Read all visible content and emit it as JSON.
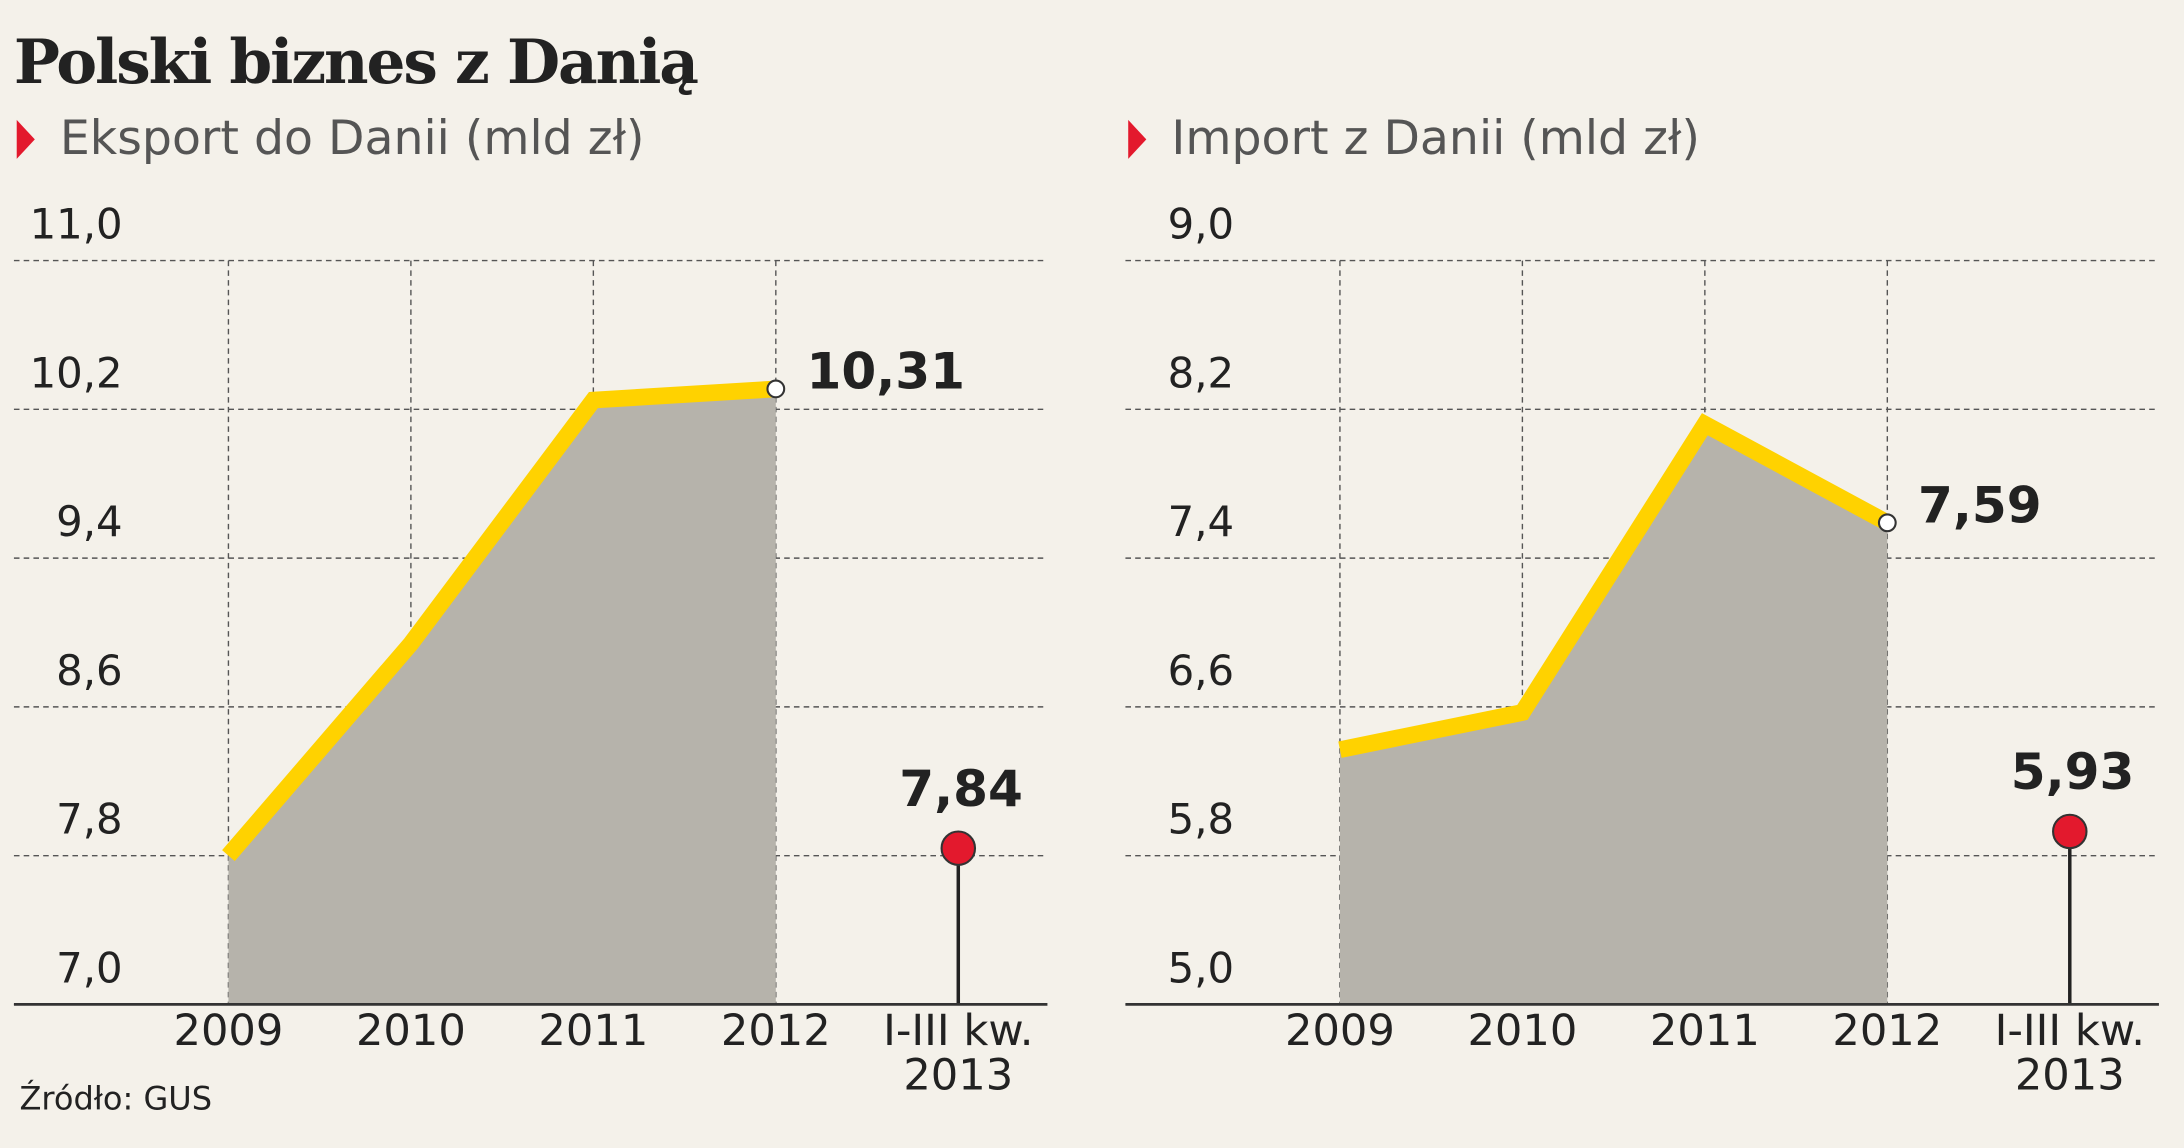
{
  "title": "Polski biznes z Danią",
  "source": "Źródło: GUS",
  "chart_data": [
    {
      "type": "line",
      "title": "Eksport do Danii (mld zł)",
      "categories": [
        "2009",
        "2010",
        "2011",
        "2012",
        "I-III kw. 2013"
      ],
      "ylim": [
        7,
        11
      ],
      "yticks": [
        {
          "value": 7,
          "label": "7,0"
        },
        {
          "value": 7.8,
          "label": "7,8"
        },
        {
          "value": 8.6,
          "label": "8,6"
        },
        {
          "value": 9.4,
          "label": "9,4"
        },
        {
          "value": 10.2,
          "label": "10,2"
        },
        {
          "value": 11,
          "label": "11,0"
        }
      ],
      "grid": true,
      "series": [
        {
          "type": "area",
          "color": "#ffd200",
          "fill": "#b6b3ab",
          "values": [
            7.8,
            8.94,
            10.25,
            10.31,
            null
          ],
          "value_labels": [
            null,
            null,
            null,
            "10,31",
            null
          ]
        },
        {
          "type": "lollipop",
          "color": "#e3192d",
          "values": [
            null,
            null,
            null,
            null,
            7.84
          ],
          "value_labels": [
            null,
            null,
            null,
            null,
            "7,84"
          ]
        }
      ]
    },
    {
      "type": "line",
      "title": "Import z Danii (mld zł)",
      "categories": [
        "2009",
        "2010",
        "2011",
        "2012",
        "I-III kw. 2013"
      ],
      "ylim": [
        5,
        9
      ],
      "yticks": [
        {
          "value": 5,
          "label": "5,0"
        },
        {
          "value": 5.8,
          "label": "5,8"
        },
        {
          "value": 6.6,
          "label": "6,6"
        },
        {
          "value": 7.4,
          "label": "7,4"
        },
        {
          "value": 8.2,
          "label": "8,2"
        },
        {
          "value": 9,
          "label": "9,0"
        }
      ],
      "grid": true,
      "series": [
        {
          "type": "area",
          "color": "#ffd200",
          "fill": "#b6b3ab",
          "values": [
            6.37,
            6.57,
            8.12,
            7.59,
            null
          ],
          "value_labels": [
            null,
            null,
            null,
            "7,59",
            null
          ]
        },
        {
          "type": "lollipop",
          "color": "#e3192d",
          "values": [
            null,
            null,
            null,
            null,
            5.93
          ],
          "value_labels": [
            null,
            null,
            null,
            null,
            "5,93"
          ]
        }
      ]
    }
  ]
}
